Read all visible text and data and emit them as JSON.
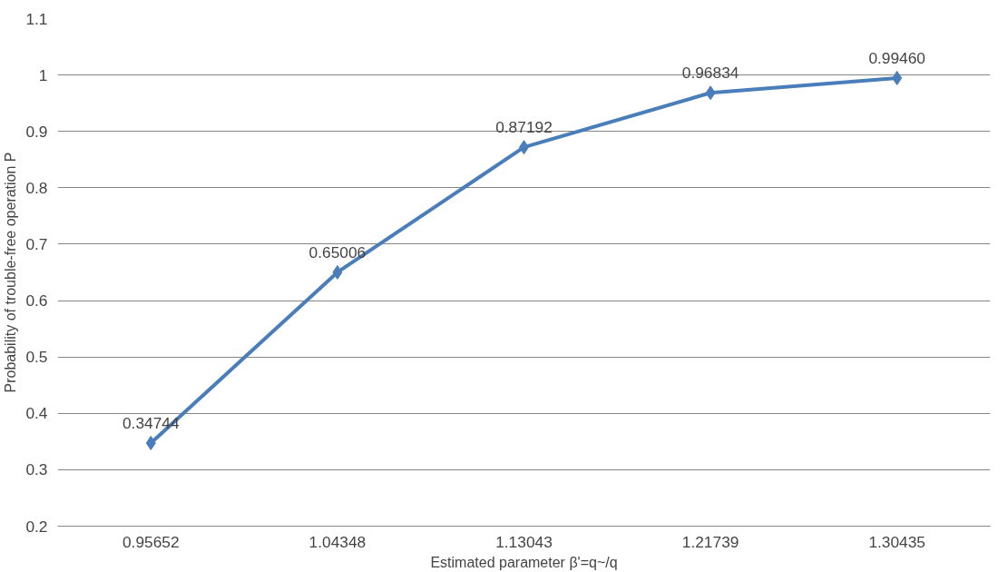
{
  "chart_data": {
    "type": "line",
    "xlabel": "Estimated parameter β'=q~/q",
    "ylabel": "Probability of trouble-free operation P",
    "categories": [
      "0.95652",
      "1.04348",
      "1.13043",
      "1.21739",
      "1.30435"
    ],
    "series": [
      {
        "color": "#4a7ebb",
        "values": [
          0.34744,
          0.65006,
          0.87192,
          0.96834,
          0.9946
        ],
        "value_labels": [
          "0.34744",
          "0.65006",
          "0.87192",
          "0.96834",
          "0.99460"
        ]
      }
    ],
    "ylim": [
      0.2,
      1.1
    ],
    "yticks": [
      0.2,
      0.3,
      0.4,
      0.5,
      0.6,
      0.7,
      0.8,
      0.9,
      {
        "value": 1,
        "label": "1"
      },
      1.1
    ],
    "grid": "y",
    "marker": "diamond",
    "line_style": "solid"
  }
}
